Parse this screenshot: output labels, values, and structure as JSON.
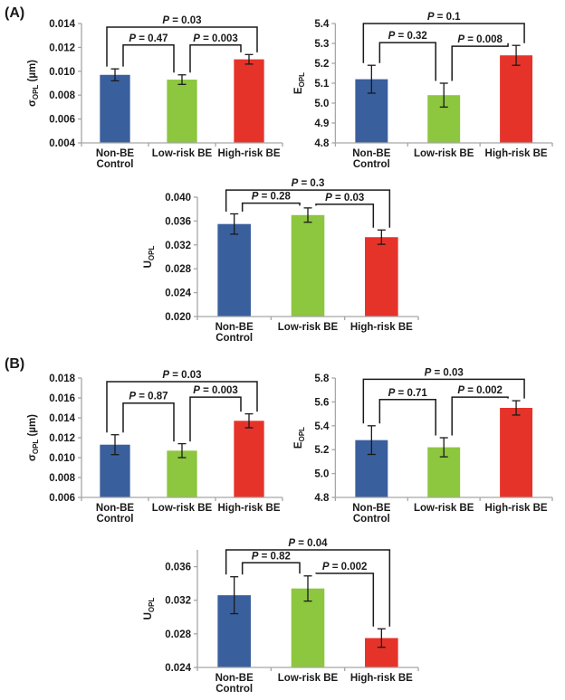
{
  "panels": [
    {
      "label": "(A)"
    },
    {
      "label": "(B)"
    }
  ],
  "palette": [
    "#3A5F9D",
    "#8DC63F",
    "#E6332A"
  ],
  "category_lines": [
    [
      "Non-BE",
      "Control"
    ],
    [
      "Low-risk BE"
    ],
    [
      "High-risk BE"
    ]
  ],
  "chart_data": [
    {
      "id": "panel-a-sigma-opl",
      "type": "bar",
      "panel": "A",
      "ylabel": {
        "pre": "σ",
        "sub": "OPL",
        "post": " (µm)"
      },
      "categories": [
        "Non-BE Control",
        "Low-risk BE",
        "High-risk BE"
      ],
      "values": [
        0.0097,
        0.0093,
        0.011
      ],
      "errors": [
        0.0005,
        0.0004,
        0.0004
      ],
      "ylim": [
        0.004,
        0.014
      ],
      "yticks": [
        "0.004",
        "0.006",
        "0.008",
        "0.010",
        "0.012",
        "0.014"
      ],
      "grid": false,
      "comparisons": [
        {
          "pair": [
            0,
            1
          ],
          "label": "P = 0.47",
          "height_frac": 0.82
        },
        {
          "pair": [
            1,
            2
          ],
          "label": "P = 0.003",
          "height_frac": 0.82
        },
        {
          "pair": [
            0,
            2
          ],
          "label": "P = 0.03",
          "height_frac": 0.97
        }
      ]
    },
    {
      "id": "panel-a-e-opl",
      "type": "bar",
      "panel": "A",
      "ylabel": {
        "pre": "E",
        "sub": "OPL",
        "post": ""
      },
      "categories": [
        "Non-BE Control",
        "Low-risk BE",
        "High-risk BE"
      ],
      "values": [
        5.12,
        5.04,
        5.24
      ],
      "errors": [
        0.07,
        0.06,
        0.05
      ],
      "ylim": [
        4.8,
        5.4
      ],
      "yticks": [
        "4.8",
        "4.9",
        "5.0",
        "5.1",
        "5.2",
        "5.3",
        "5.4"
      ],
      "grid": false,
      "comparisons": [
        {
          "pair": [
            0,
            1
          ],
          "label": "P = 0.32",
          "height_frac": 0.84
        },
        {
          "pair": [
            1,
            2
          ],
          "label": "P = 0.008",
          "height_frac": 0.81
        },
        {
          "pair": [
            0,
            2
          ],
          "label": "P = 0.1",
          "height_frac": 1.0
        }
      ]
    },
    {
      "id": "panel-a-u-opl",
      "type": "bar",
      "panel": "A",
      "ylabel": {
        "pre": "U",
        "sub": "OPL",
        "post": ""
      },
      "categories": [
        "Non-BE Control",
        "Low-risk BE",
        "High-risk BE"
      ],
      "values": [
        0.0355,
        0.037,
        0.0333
      ],
      "errors": [
        0.0017,
        0.0012,
        0.0012
      ],
      "ylim": [
        0.02,
        0.04
      ],
      "yticks": [
        "0.020",
        "0.024",
        "0.028",
        "0.032",
        "0.036",
        "0.040"
      ],
      "grid": false,
      "comparisons": [
        {
          "pair": [
            0,
            1
          ],
          "label": "P = 0.28",
          "height_frac": 0.95
        },
        {
          "pair": [
            1,
            2
          ],
          "label": "P = 0.03",
          "height_frac": 0.94
        },
        {
          "pair": [
            0,
            2
          ],
          "label": "P = 0.3",
          "height_frac": 1.06
        }
      ]
    },
    {
      "id": "panel-b-sigma-opl",
      "type": "bar",
      "panel": "B",
      "ylabel": {
        "pre": "σ",
        "sub": "OPL",
        "post": " (µm)"
      },
      "categories": [
        "Non-BE Control",
        "Low-risk BE",
        "High-risk BE"
      ],
      "values": [
        0.0113,
        0.0107,
        0.0137
      ],
      "errors": [
        0.001,
        0.0007,
        0.0007
      ],
      "ylim": [
        0.006,
        0.018
      ],
      "yticks": [
        "0.006",
        "0.008",
        "0.010",
        "0.012",
        "0.014",
        "0.016",
        "0.018"
      ],
      "grid": false,
      "comparisons": [
        {
          "pair": [
            0,
            1
          ],
          "label": "P = 0.87",
          "height_frac": 0.79
        },
        {
          "pair": [
            1,
            2
          ],
          "label": "P = 0.003",
          "height_frac": 0.84
        },
        {
          "pair": [
            0,
            2
          ],
          "label": "P = 0.03",
          "height_frac": 0.97
        }
      ]
    },
    {
      "id": "panel-b-e-opl",
      "type": "bar",
      "panel": "B",
      "ylabel": {
        "pre": "E",
        "sub": "OPL",
        "post": ""
      },
      "categories": [
        "Non-BE Control",
        "Low-risk BE",
        "High-risk BE"
      ],
      "values": [
        5.28,
        5.22,
        5.55
      ],
      "errors": [
        0.12,
        0.08,
        0.06
      ],
      "ylim": [
        4.8,
        5.8
      ],
      "yticks": [
        "4.8",
        "5.0",
        "5.2",
        "5.4",
        "5.6",
        "5.8"
      ],
      "grid": false,
      "comparisons": [
        {
          "pair": [
            0,
            1
          ],
          "label": "P = 0.71",
          "height_frac": 0.82
        },
        {
          "pair": [
            1,
            2
          ],
          "label": "P = 0.002",
          "height_frac": 0.84
        },
        {
          "pair": [
            0,
            2
          ],
          "label": "P = 0.03",
          "height_frac": 0.99
        }
      ]
    },
    {
      "id": "panel-b-u-opl",
      "type": "bar",
      "panel": "B",
      "ylabel": {
        "pre": "U",
        "sub": "OPL",
        "post": ""
      },
      "categories": [
        "Non-BE Control",
        "Low-risk BE",
        "High-risk BE"
      ],
      "values": [
        0.0326,
        0.0334,
        0.0275
      ],
      "errors": [
        0.0022,
        0.0015,
        0.0011
      ],
      "ylim": [
        0.024,
        0.038
      ],
      "yticks": [
        "0.024",
        "0.028",
        "0.032",
        "0.036"
      ],
      "grid": false,
      "comparisons": [
        {
          "pair": [
            0,
            1
          ],
          "label": "P = 0.82",
          "height_frac": 0.89
        },
        {
          "pair": [
            1,
            2
          ],
          "label": "P = 0.002",
          "height_frac": 0.8
        },
        {
          "pair": [
            0,
            2
          ],
          "label": "P = 0.04",
          "height_frac": 1.0
        }
      ]
    }
  ]
}
